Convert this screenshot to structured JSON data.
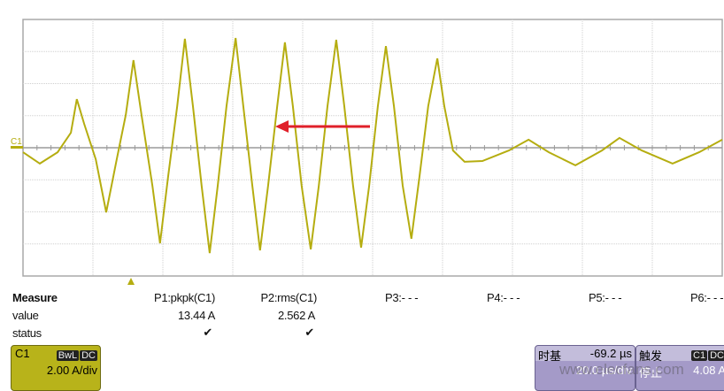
{
  "channel_label": "C1",
  "colors": {
    "trace": "#b5ad10",
    "grid": "#c8c8c8",
    "arrow": "#e0202a",
    "c1_box": "#b8b31a",
    "timebase_box": "#a49ac8"
  },
  "waveform": {
    "units": {
      "x": "µs",
      "y": "A"
    },
    "points": [
      [
        0,
        -0.28
      ],
      [
        4.8,
        -0.99
      ],
      [
        9.9,
        -0.28
      ],
      [
        13.7,
        0.94
      ],
      [
        15.4,
        3.03
      ],
      [
        17.5,
        1.49
      ],
      [
        20.8,
        -0.72
      ],
      [
        23.8,
        -4.03
      ],
      [
        26.8,
        -0.72
      ],
      [
        29.4,
        2.04
      ],
      [
        31.6,
        5.46
      ],
      [
        33.9,
        2.04
      ],
      [
        37.0,
        -2.37
      ],
      [
        39.2,
        -5.96
      ],
      [
        41.5,
        -1.82
      ],
      [
        44.1,
        2.59
      ],
      [
        46.3,
        6.79
      ],
      [
        48.6,
        2.59
      ],
      [
        51.1,
        -2.37
      ],
      [
        53.4,
        -6.57
      ],
      [
        55.7,
        -2.37
      ],
      [
        58.2,
        2.59
      ],
      [
        60.8,
        6.84
      ],
      [
        63.0,
        2.59
      ],
      [
        65.6,
        -2.37
      ],
      [
        67.8,
        -6.4
      ],
      [
        70.1,
        -2.37
      ],
      [
        72.7,
        2.59
      ],
      [
        74.9,
        6.57
      ],
      [
        77.2,
        2.59
      ],
      [
        79.7,
        -2.37
      ],
      [
        82.3,
        -6.34
      ],
      [
        84.6,
        -2.37
      ],
      [
        87.1,
        2.59
      ],
      [
        89.6,
        6.73
      ],
      [
        91.9,
        2.59
      ],
      [
        94.4,
        -2.37
      ],
      [
        96.7,
        -6.23
      ],
      [
        99.0,
        -2.37
      ],
      [
        101.5,
        2.59
      ],
      [
        103.8,
        6.34
      ],
      [
        106.1,
        2.59
      ],
      [
        108.6,
        -2.37
      ],
      [
        111.1,
        -5.68
      ],
      [
        113.4,
        -1.82
      ],
      [
        115.9,
        2.59
      ],
      [
        118.5,
        5.57
      ],
      [
        120.5,
        2.59
      ],
      [
        123.0,
        -0.17
      ],
      [
        126.3,
        -0.88
      ],
      [
        131.4,
        -0.83
      ],
      [
        139.0,
        -0.17
      ],
      [
        144.6,
        0.5
      ],
      [
        150.4,
        -0.28
      ],
      [
        158.0,
        -1.1
      ],
      [
        165.6,
        -0.17
      ],
      [
        170.6,
        0.61
      ],
      [
        177.0,
        -0.17
      ],
      [
        185.8,
        -0.99
      ],
      [
        193.4,
        -0.28
      ],
      [
        200,
        0.5
      ]
    ]
  },
  "measure": {
    "header": "Measure",
    "row_value": "value",
    "row_status": "status",
    "params": [
      {
        "name": "P1:pkpk(C1)",
        "value": "13.44 A",
        "status": "✔"
      },
      {
        "name": "P2:rms(C1)",
        "value": "2.562 A",
        "status": "✔"
      },
      {
        "name": "P3:- - -",
        "value": "",
        "status": ""
      },
      {
        "name": "P4:- - -",
        "value": "",
        "status": ""
      },
      {
        "name": "P5:- - -",
        "value": "",
        "status": ""
      },
      {
        "name": "P6:- - -",
        "value": "",
        "status": ""
      }
    ]
  },
  "c1_box": {
    "title": "C1",
    "bw": "BwL",
    "coupling": "DC",
    "scale": "2.00 A/div"
  },
  "timebase": {
    "title": "时基",
    "delay": "-69.2 µs",
    "scale": "20.0 µs/div"
  },
  "trigger": {
    "title": "触发",
    "source": "C1",
    "coupling": "DC",
    "mode": "停止",
    "level": "4.08 A"
  },
  "watermark": "www.elecfans.com"
}
